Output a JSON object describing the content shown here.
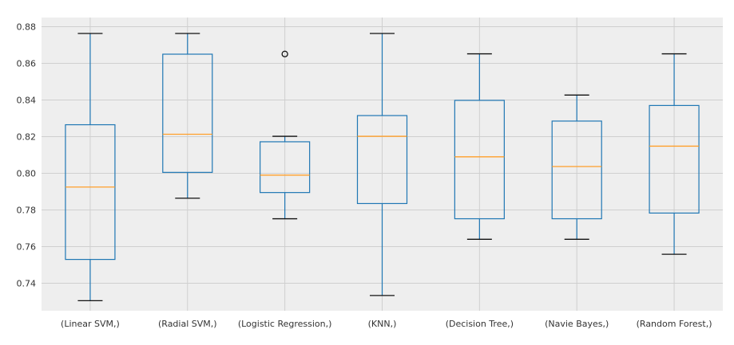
{
  "chart_data": {
    "type": "box",
    "title": "",
    "xlabel": "",
    "ylabel": "",
    "ylim": [
      0.725,
      0.885
    ],
    "yticks": [
      0.74,
      0.76,
      0.78,
      0.8,
      0.82,
      0.84,
      0.86,
      0.88
    ],
    "ytick_labels": [
      "0.74",
      "0.76",
      "0.78",
      "0.80",
      "0.82",
      "0.84",
      "0.86",
      "0.88"
    ],
    "grid": true,
    "categories": [
      "(Linear SVM,)",
      "(Radial SVM,)",
      "(Logistic Regression,)",
      "(KNN,)",
      "(Decision Tree,)",
      "(Navie Bayes,)",
      "(Random Forest,)"
    ],
    "boxes": [
      {
        "whislo": 0.7305,
        "q1": 0.753,
        "med": 0.7925,
        "q3": 0.8265,
        "whishi": 0.8763,
        "fliers": []
      },
      {
        "whislo": 0.7864,
        "q1": 0.8005,
        "med": 0.8213,
        "q3": 0.865,
        "whishi": 0.8763,
        "fliers": []
      },
      {
        "whislo": 0.7752,
        "q1": 0.7895,
        "med": 0.799,
        "q3": 0.8172,
        "whishi": 0.8202,
        "fliers": [
          0.8651
        ]
      },
      {
        "whislo": 0.7333,
        "q1": 0.7835,
        "med": 0.8202,
        "q3": 0.8315,
        "whishi": 0.8763,
        "fliers": []
      },
      {
        "whislo": 0.764,
        "q1": 0.7752,
        "med": 0.809,
        "q3": 0.8398,
        "whishi": 0.8652,
        "fliers": []
      },
      {
        "whislo": 0.764,
        "q1": 0.7752,
        "med": 0.8037,
        "q3": 0.8285,
        "whishi": 0.8427,
        "fliers": []
      },
      {
        "whislo": 0.7558,
        "q1": 0.7783,
        "med": 0.8148,
        "q3": 0.837,
        "whishi": 0.8652,
        "fliers": []
      }
    ],
    "colors": {
      "box": "#1f77b4",
      "median": "#ff9f2a",
      "whisker_cap": "#111111",
      "flier": "#111111",
      "background": "#eeeeee",
      "grid": "#cfcfcf"
    }
  }
}
